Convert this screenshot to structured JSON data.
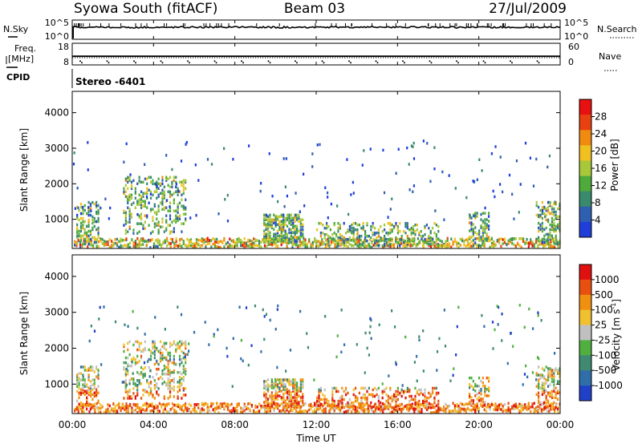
{
  "header": {
    "station": "Syowa South (fitACF)",
    "beam": "Beam 03",
    "date": "27/Jul/2009"
  },
  "chart_data": [
    {
      "type": "line",
      "panel": "noise",
      "left_label": "N.Sky",
      "right_label": "N.Search",
      "left_ticks": [
        "10^5",
        "10^0"
      ],
      "right_ticks": [
        "10^5",
        "10^0"
      ]
    },
    {
      "type": "scatter",
      "panel": "frequency",
      "left_label_1": "Freq.",
      "left_label_2": "[MHz]",
      "right_label": "Nave",
      "left_ticks": [
        "18",
        "8"
      ],
      "right_ticks": [
        "60",
        "0"
      ],
      "left_range": [
        8,
        18
      ],
      "right_range": [
        0,
        60
      ],
      "freq_mhz": 12.0,
      "nave": 20
    },
    {
      "type": "table",
      "panel": "cpid",
      "label": "CPID",
      "value": "Stereo -6401"
    },
    {
      "type": "heatmap",
      "panel": "power",
      "ylabel": "Slant Range [km]",
      "ylim": [
        180,
        4600
      ],
      "y_ticks": [
        "1000",
        "2000",
        "3000",
        "4000"
      ],
      "colorbar_label": "Power [dB]",
      "colorbar_ticks": [
        "4",
        "8",
        "12",
        "16",
        "20",
        "24",
        "28"
      ]
    },
    {
      "type": "heatmap",
      "panel": "velocity",
      "ylabel": "Slant Range [km]",
      "ylim": [
        180,
        4600
      ],
      "y_ticks": [
        "1000",
        "2000",
        "3000",
        "4000"
      ],
      "colorbar_label": "Velocity [m s",
      "colorbar_label_sup": "-1",
      "colorbar_label_end": "]",
      "colorbar_ticks": [
        "1000",
        "500",
        "100",
        "25",
        "-25",
        "-100",
        "-500",
        "-1000"
      ]
    }
  ],
  "x_axis": {
    "label": "Time UT",
    "ticks": [
      "00:00",
      "04:00",
      "08:00",
      "12:00",
      "16:00",
      "20:00",
      "00:00"
    ]
  },
  "colors": {
    "power_scale": [
      "#1f3fd8",
      "#2f5fb0",
      "#3a8a6e",
      "#4faa3c",
      "#a8c83a",
      "#f0c020",
      "#f08a10",
      "#e84010",
      "#e81010"
    ],
    "velocity_scale": [
      "#2040c8",
      "#2f6ea8",
      "#3f8a70",
      "#4fb040",
      "#c0c0c0",
      "#f0c030",
      "#f09010",
      "#e85010",
      "#e01010"
    ]
  }
}
